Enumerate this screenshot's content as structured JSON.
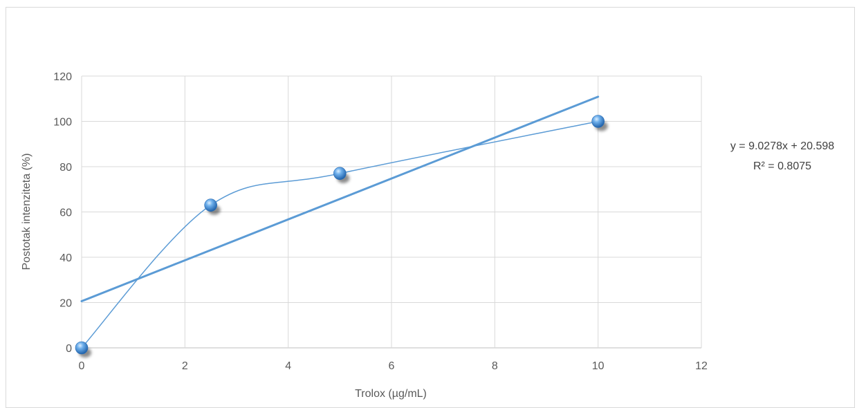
{
  "chart_data": {
    "type": "scatter",
    "xlabel": "Trolox (µg/mL)",
    "ylabel": "Postotak intenziteta (%)",
    "xlim": [
      0,
      12
    ],
    "ylim": [
      0,
      120
    ],
    "x_ticks": [
      0,
      2,
      4,
      6,
      8,
      10,
      12
    ],
    "y_ticks": [
      0,
      20,
      40,
      60,
      80,
      100,
      120
    ],
    "grid": true,
    "series": [
      {
        "x": [
          0,
          2.5,
          5,
          10
        ],
        "y": [
          0,
          63,
          77,
          100
        ],
        "smooth_line": true,
        "color": "#5b9bd5"
      }
    ],
    "trendline": {
      "type": "linear",
      "slope": 9.0278,
      "intercept": 20.598,
      "x_range": [
        0,
        10
      ],
      "color": "#5b9bd5",
      "equation": "y = 9.0278x + 20.598",
      "r_squared": "R² = 0.8075"
    }
  }
}
